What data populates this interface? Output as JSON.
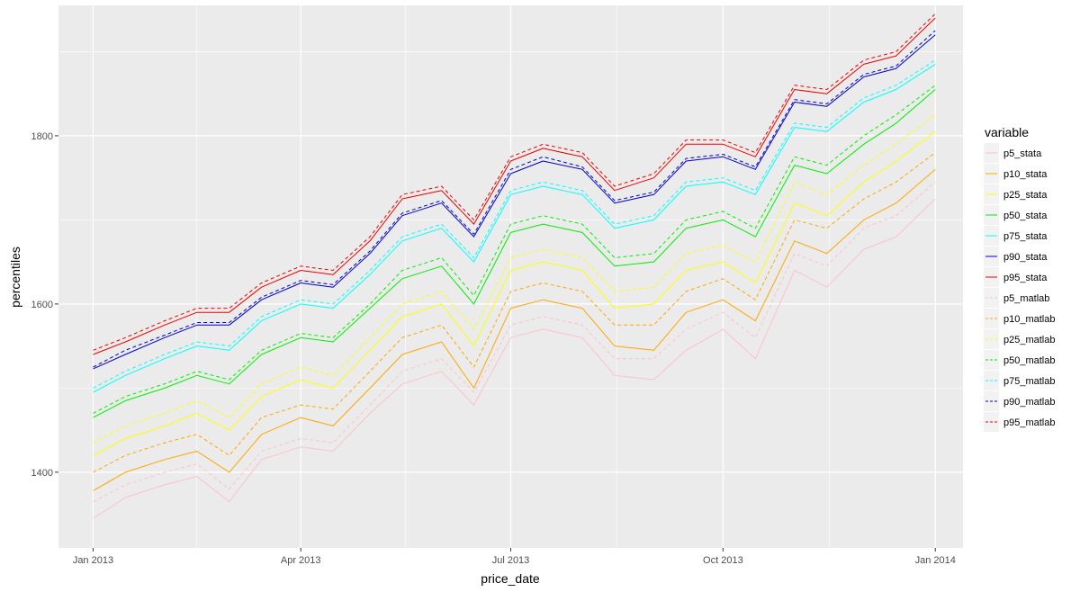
{
  "chart_data": {
    "type": "line",
    "xlabel": "price_date",
    "ylabel": "percentiles",
    "xlim": [
      "2012-12-17",
      "2014-01-13"
    ],
    "ylim": [
      1310,
      1955
    ],
    "x_ticks": [
      {
        "label": "Jan 2013",
        "date": "2013-01-01"
      },
      {
        "label": "Apr 2013",
        "date": "2013-04-01"
      },
      {
        "label": "Jul 2013",
        "date": "2013-07-01"
      },
      {
        "label": "Oct 2013",
        "date": "2013-10-01"
      },
      {
        "label": "Jan 2014",
        "date": "2014-01-01"
      }
    ],
    "y_ticks": [
      1400,
      1600,
      1800
    ],
    "grid": true,
    "legend": {
      "title": "variable",
      "position": "right"
    },
    "x": [
      "2013-01-01",
      "2013-01-15",
      "2013-02-01",
      "2013-02-15",
      "2013-03-01",
      "2013-03-15",
      "2013-04-01",
      "2013-04-15",
      "2013-05-01",
      "2013-05-15",
      "2013-06-01",
      "2013-06-15",
      "2013-07-01",
      "2013-07-15",
      "2013-08-01",
      "2013-08-15",
      "2013-09-01",
      "2013-09-15",
      "2013-10-01",
      "2013-10-15",
      "2013-11-01",
      "2013-11-15",
      "2013-12-01",
      "2013-12-15",
      "2014-01-01"
    ],
    "series": [
      {
        "name": "p5_stata",
        "color": "#ffc0cb",
        "dash": "solid",
        "values": [
          1345,
          1370,
          1385,
          1395,
          1365,
          1415,
          1430,
          1425,
          1470,
          1505,
          1520,
          1480,
          1560,
          1570,
          1560,
          1515,
          1510,
          1545,
          1570,
          1535,
          1640,
          1620,
          1665,
          1680,
          1725
        ]
      },
      {
        "name": "p10_stata",
        "color": "#ffa500",
        "dash": "solid",
        "values": [
          1378,
          1400,
          1415,
          1425,
          1400,
          1445,
          1465,
          1455,
          1500,
          1540,
          1555,
          1500,
          1595,
          1605,
          1595,
          1550,
          1545,
          1590,
          1605,
          1580,
          1675,
          1660,
          1700,
          1720,
          1760
        ]
      },
      {
        "name": "p25_stata",
        "color": "#ffff00",
        "dash": "solid",
        "values": [
          1420,
          1440,
          1455,
          1470,
          1450,
          1490,
          1510,
          1500,
          1545,
          1585,
          1600,
          1550,
          1640,
          1650,
          1640,
          1595,
          1600,
          1640,
          1650,
          1625,
          1720,
          1705,
          1745,
          1770,
          1805
        ]
      },
      {
        "name": "p50_stata",
        "color": "#00ee00",
        "dash": "solid",
        "values": [
          1465,
          1485,
          1500,
          1515,
          1505,
          1540,
          1560,
          1555,
          1595,
          1630,
          1645,
          1600,
          1685,
          1695,
          1685,
          1645,
          1650,
          1690,
          1700,
          1680,
          1765,
          1755,
          1790,
          1815,
          1855
        ]
      },
      {
        "name": "p75_stata",
        "color": "#00ffff",
        "dash": "solid",
        "values": [
          1495,
          1515,
          1535,
          1550,
          1545,
          1580,
          1600,
          1595,
          1635,
          1675,
          1690,
          1650,
          1730,
          1740,
          1730,
          1690,
          1700,
          1740,
          1745,
          1730,
          1810,
          1805,
          1840,
          1855,
          1885
        ]
      },
      {
        "name": "p90_stata",
        "color": "#0000cd",
        "dash": "solid",
        "values": [
          1523,
          1540,
          1560,
          1575,
          1575,
          1605,
          1625,
          1620,
          1660,
          1705,
          1720,
          1680,
          1755,
          1770,
          1760,
          1720,
          1730,
          1770,
          1775,
          1760,
          1840,
          1835,
          1870,
          1880,
          1920
        ]
      },
      {
        "name": "p95_stata",
        "color": "#ee0000",
        "dash": "solid",
        "values": [
          1540,
          1555,
          1575,
          1590,
          1590,
          1620,
          1640,
          1635,
          1675,
          1725,
          1735,
          1695,
          1770,
          1785,
          1775,
          1735,
          1750,
          1790,
          1790,
          1775,
          1855,
          1850,
          1885,
          1895,
          1940
        ]
      },
      {
        "name": "p5_matlab",
        "color": "#ffc0cb",
        "dash": "dashed",
        "values": [
          1365,
          1385,
          1400,
          1410,
          1380,
          1425,
          1440,
          1435,
          1480,
          1520,
          1535,
          1495,
          1575,
          1585,
          1575,
          1535,
          1535,
          1570,
          1590,
          1560,
          1660,
          1645,
          1690,
          1705,
          1745
        ]
      },
      {
        "name": "p10_matlab",
        "color": "#ffa500",
        "dash": "dashed",
        "values": [
          1400,
          1420,
          1435,
          1445,
          1420,
          1465,
          1480,
          1475,
          1520,
          1560,
          1575,
          1525,
          1615,
          1625,
          1615,
          1575,
          1575,
          1615,
          1630,
          1605,
          1700,
          1690,
          1725,
          1745,
          1780
        ]
      },
      {
        "name": "p25_matlab",
        "color": "#ffff00",
        "dash": "dashed",
        "values": [
          1435,
          1455,
          1470,
          1485,
          1465,
          1505,
          1525,
          1515,
          1560,
          1600,
          1615,
          1570,
          1655,
          1665,
          1655,
          1615,
          1620,
          1660,
          1670,
          1650,
          1745,
          1730,
          1765,
          1790,
          1825
        ]
      },
      {
        "name": "p50_matlab",
        "color": "#00ee00",
        "dash": "dashed",
        "values": [
          1470,
          1490,
          1505,
          1520,
          1510,
          1545,
          1565,
          1560,
          1600,
          1640,
          1655,
          1610,
          1695,
          1705,
          1695,
          1655,
          1660,
          1700,
          1710,
          1690,
          1775,
          1765,
          1800,
          1825,
          1860
        ]
      },
      {
        "name": "p75_matlab",
        "color": "#00ffff",
        "dash": "dashed",
        "values": [
          1500,
          1520,
          1540,
          1555,
          1550,
          1585,
          1605,
          1600,
          1640,
          1680,
          1695,
          1655,
          1735,
          1745,
          1735,
          1695,
          1705,
          1745,
          1750,
          1735,
          1815,
          1810,
          1845,
          1860,
          1890
        ]
      },
      {
        "name": "p90_matlab",
        "color": "#0000cd",
        "dash": "dashed",
        "values": [
          1525,
          1545,
          1563,
          1578,
          1578,
          1608,
          1628,
          1623,
          1663,
          1708,
          1723,
          1683,
          1760,
          1775,
          1763,
          1723,
          1733,
          1773,
          1778,
          1763,
          1843,
          1838,
          1873,
          1883,
          1925
        ]
      },
      {
        "name": "p95_matlab",
        "color": "#ee0000",
        "dash": "dashed",
        "values": [
          1545,
          1560,
          1580,
          1595,
          1595,
          1625,
          1645,
          1640,
          1680,
          1730,
          1740,
          1700,
          1775,
          1790,
          1780,
          1740,
          1755,
          1795,
          1795,
          1780,
          1860,
          1855,
          1890,
          1900,
          1945
        ]
      }
    ]
  }
}
